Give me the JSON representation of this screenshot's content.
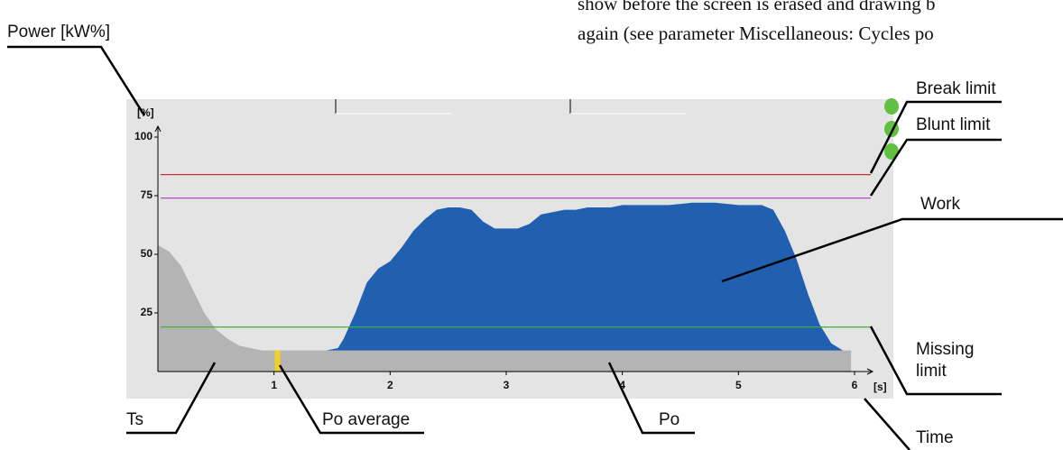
{
  "chart_data": {
    "type": "area",
    "y_label": "[%]",
    "x_label": "[s]",
    "xlim": [
      0,
      6
    ],
    "ylim": [
      0,
      100
    ],
    "xticks": [
      1,
      2,
      3,
      4,
      5,
      6
    ],
    "yticks": [
      25,
      50,
      75,
      100
    ],
    "series": [
      {
        "name": "Ts",
        "color": "#b4b4b4",
        "x": [
          0,
          0.1,
          0.2,
          0.3,
          0.4,
          0.5,
          0.6,
          0.7,
          0.8,
          0.9
        ],
        "values": [
          54,
          51,
          45,
          35,
          25,
          18,
          14,
          11,
          10,
          9
        ]
      },
      {
        "name": "Work",
        "color": "#2160b0",
        "x": [
          1.45,
          1.55,
          1.6,
          1.7,
          1.8,
          1.9,
          2.0,
          2.1,
          2.2,
          2.3,
          2.4,
          2.5,
          2.6,
          2.7,
          2.8,
          2.9,
          3.0,
          3.1,
          3.2,
          3.3,
          3.4,
          3.5,
          3.6,
          3.7,
          3.8,
          3.9,
          4.0,
          4.2,
          4.4,
          4.6,
          4.8,
          5.0,
          5.2,
          5.3,
          5.4,
          5.5,
          5.6,
          5.7,
          5.8,
          5.9
        ],
        "values": [
          9,
          10,
          14,
          25,
          38,
          44,
          47,
          53,
          60,
          65,
          69,
          70,
          70,
          69,
          64,
          61,
          61,
          61,
          63,
          67,
          68,
          69,
          69,
          70,
          70,
          70,
          71,
          71,
          71,
          72,
          72,
          71,
          71,
          69,
          60,
          48,
          33,
          20,
          12,
          9
        ]
      }
    ],
    "po": {
      "name": "Po",
      "color": "#b4b4b4",
      "x": [
        0,
        5.97
      ],
      "value": 9
    },
    "po_average": {
      "name": "Po average",
      "color": "#f0d020",
      "x": 1.03,
      "value": 9
    },
    "limits": [
      {
        "name": "Break limit",
        "value": 84,
        "color": "#d03030"
      },
      {
        "name": "Blunt limit",
        "value": 74,
        "color": "#b050c0"
      },
      {
        "name": "Missing limit",
        "value": 19,
        "color": "#40b040"
      }
    ],
    "annotations": [
      "Power [kW%]",
      "Work",
      "Time"
    ],
    "header_text": [
      "show before the screen is erased and drawing b",
      "again (see parameter Miscellaneous: Cycles po"
    ]
  }
}
